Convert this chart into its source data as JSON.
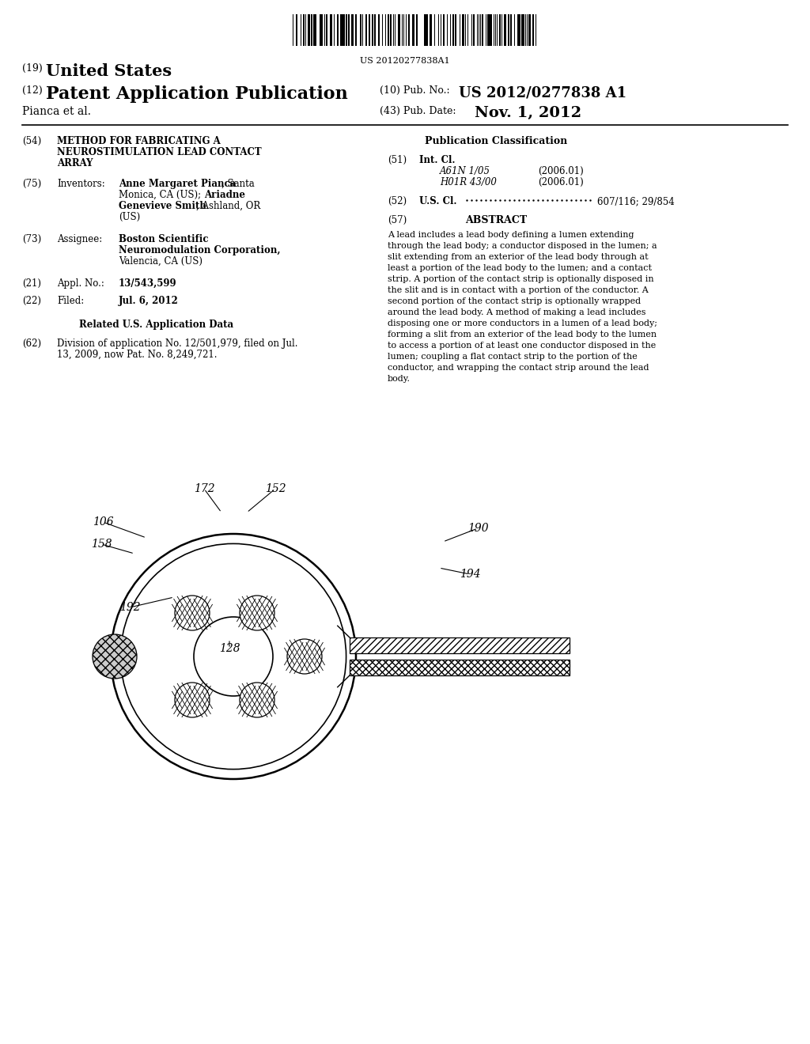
{
  "bg_color": "#ffffff",
  "barcode_text": "US 20120277838A1",
  "title_19": "(19)  United States",
  "title_12_left": "(12)",
  "title_12_right": "Patent Application Publication",
  "pub_no_label": "(10) Pub. No.:",
  "pub_no_value": "US 2012/0277838 A1",
  "author": "Pianca et al.",
  "pub_date_label": "(43) Pub. Date:",
  "pub_date_value": "Nov. 1, 2012",
  "section54_num": "(54)",
  "section54_title": "METHOD FOR FABRICATING A\nNEUROSTIMULATION LEAD CONTACT\nARRAY",
  "section75_num": "(75)",
  "section75_label": "Inventors:",
  "section75_value_bold": "Anne Margaret Pianca",
  "section75_value1": ", Santa\nMonica, CA (US); ",
  "section75_bold2": "Ariadne\nGenevieve Smith",
  "section75_value2": ", Ashland, OR\n(US)",
  "section73_num": "(73)",
  "section73_label": "Assignee:",
  "section73_value": "Boston Scientific\nNeuromodulation Corporation,\nValencia, CA (US)",
  "section21_num": "(21)",
  "section21_label": "Appl. No.:",
  "section21_value": "13/543,599",
  "section22_num": "(22)",
  "section22_label": "Filed:",
  "section22_value": "Jul. 6, 2012",
  "related_title": "Related U.S. Application Data",
  "section62_num": "(62)",
  "section62_value": "Division of application No. 12/501,979, filed on Jul.\n13, 2009, now Pat. No. 8,249,721.",
  "pub_class_title": "Publication Classification",
  "section51_num": "(51)",
  "section51_label": "Int. Cl.",
  "section51_class1": "A61N 1/05",
  "section51_date1": "(2006.01)",
  "section51_class2": "H01R 43/00",
  "section51_date2": "(2006.01)",
  "section52_num": "(52)",
  "section52_label": "U.S. Cl. ",
  "section52_value": "607/116; 29/854",
  "section57_num": "(57)",
  "section57_label": "ABSTRACT",
  "abstract_text": "A lead includes a lead body defining a lumen extending\nthrough the lead body; a conductor disposed in the lumen; a\nslit extending from an exterior of the lead body through at\nleast a portion of the lead body to the lumen; and a contact\nstrip. A portion of the contact strip is optionally disposed in\nthe slit and is in contact with a portion of the conductor. A\nsecond portion of the contact strip is optionally wrapped\naround the lead body. A method of making a lead includes\ndisposing one or more conductors in a lumen of a lead body;\nforming a slit from an exterior of the lead body to the lumen\nto access a portion of at least one conductor disposed in the\nlumen; coupling a flat contact strip to the portion of the\nconductor, and wrapping the contact strip around the lead\nbody.",
  "fig_width": 10.24,
  "fig_height": 13.2,
  "dpi": 100
}
